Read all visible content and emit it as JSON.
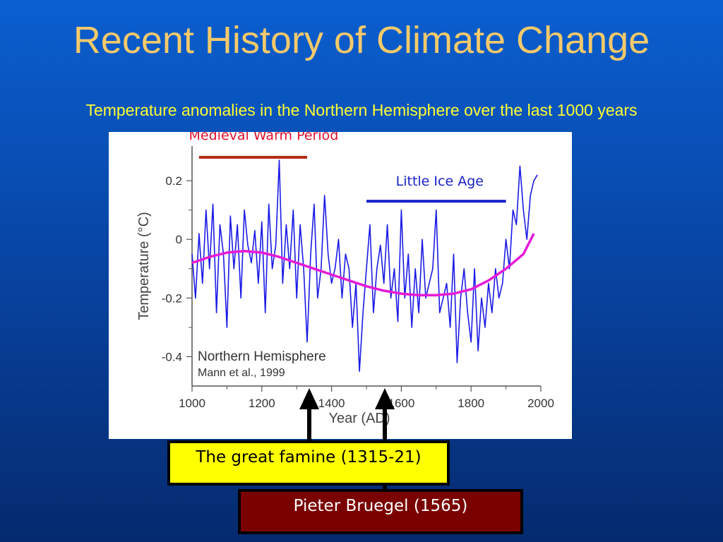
{
  "slide": {
    "title": "Recent History of Climate Change",
    "subtitle": "Temperature anomalies in the Northern Hemisphere over the last 1000 years"
  },
  "events": {
    "famine": "The great famine (1315-21)",
    "bruegel": "Pieter Bruegel (1565)"
  },
  "chart_data": {
    "type": "line",
    "xlabel": "Year (AD)",
    "ylabel": "Temperature (°C)",
    "xlim": [
      1000,
      2000
    ],
    "ylim": [
      -0.5,
      0.27
    ],
    "x_ticks": [
      1000,
      1200,
      1400,
      1600,
      1800,
      2000
    ],
    "y_ticks": [
      0.2,
      0,
      -0.2,
      -0.4
    ],
    "y_tick_labels": [
      "0.2",
      "0",
      "-0.2",
      "-0.4"
    ],
    "source_label": "Northern Hemisphere",
    "citation_label": "Mann et al., 1999",
    "periods": [
      {
        "name": "Medieval Warm Period",
        "start": 1020,
        "end": 1330,
        "level": 0.28,
        "color": "#b22a12",
        "label_color": "#e0102a"
      },
      {
        "name": "Little Ice Age",
        "start": 1500,
        "end": 1900,
        "level": 0.13,
        "color": "#1a22c8",
        "label_color": "#1a22c8"
      }
    ],
    "series": [
      {
        "color": "#1a1ae6",
        "x": [
          1000,
          1010,
          1020,
          1030,
          1040,
          1050,
          1060,
          1070,
          1080,
          1090,
          1100,
          1110,
          1120,
          1130,
          1140,
          1150,
          1160,
          1170,
          1180,
          1190,
          1200,
          1210,
          1220,
          1230,
          1240,
          1250,
          1260,
          1270,
          1280,
          1290,
          1300,
          1310,
          1320,
          1330,
          1340,
          1350,
          1360,
          1370,
          1380,
          1390,
          1400,
          1410,
          1420,
          1430,
          1440,
          1450,
          1460,
          1470,
          1480,
          1490,
          1500,
          1510,
          1520,
          1530,
          1540,
          1550,
          1560,
          1570,
          1580,
          1590,
          1600,
          1610,
          1620,
          1630,
          1640,
          1650,
          1660,
          1670,
          1680,
          1690,
          1700,
          1710,
          1720,
          1730,
          1740,
          1750,
          1760,
          1770,
          1780,
          1790,
          1800,
          1810,
          1820,
          1830,
          1840,
          1850,
          1860,
          1870,
          1880,
          1890,
          1900,
          1910,
          1920,
          1930,
          1940,
          1950,
          1960,
          1970,
          1980,
          1990
        ],
        "values": [
          -0.05,
          -0.2,
          0.02,
          -0.15,
          0.1,
          -0.1,
          0.12,
          -0.25,
          0.05,
          -0.05,
          -0.3,
          0.08,
          -0.1,
          0.05,
          -0.2,
          0.1,
          -0.02,
          -0.08,
          0.03,
          -0.15,
          0.06,
          -0.25,
          0.12,
          -0.1,
          -0.02,
          0.27,
          -0.15,
          0.05,
          -0.1,
          0.1,
          -0.2,
          0.05,
          -0.1,
          -0.35,
          -0.05,
          0.12,
          -0.2,
          -0.1,
          0.15,
          -0.05,
          -0.15,
          -0.1,
          0.0,
          -0.2,
          -0.05,
          -0.1,
          -0.3,
          -0.15,
          -0.45,
          -0.25,
          -0.1,
          0.05,
          -0.25,
          -0.1,
          -0.02,
          -0.15,
          0.05,
          -0.2,
          -0.1,
          -0.28,
          0.1,
          -0.2,
          -0.05,
          -0.3,
          -0.1,
          -0.25,
          0.0,
          -0.2,
          -0.15,
          -0.1,
          0.1,
          -0.25,
          -0.2,
          -0.15,
          -0.3,
          -0.05,
          -0.42,
          -0.2,
          -0.1,
          -0.25,
          -0.35,
          -0.1,
          -0.38,
          -0.2,
          -0.3,
          -0.15,
          -0.25,
          -0.1,
          -0.2,
          -0.15,
          0.0,
          -0.1,
          0.1,
          0.05,
          0.25,
          0.1,
          0.0,
          0.15,
          0.2,
          0.22
        ]
      },
      {
        "color": "#e61ad8",
        "x": [
          1000,
          1050,
          1100,
          1150,
          1200,
          1250,
          1300,
          1350,
          1400,
          1450,
          1500,
          1550,
          1600,
          1650,
          1700,
          1750,
          1800,
          1850,
          1900,
          1950,
          1980
        ],
        "values": [
          -0.08,
          -0.06,
          -0.045,
          -0.04,
          -0.045,
          -0.06,
          -0.08,
          -0.1,
          -0.12,
          -0.14,
          -0.16,
          -0.175,
          -0.185,
          -0.19,
          -0.19,
          -0.185,
          -0.17,
          -0.14,
          -0.1,
          -0.05,
          0.02
        ]
      }
    ]
  }
}
